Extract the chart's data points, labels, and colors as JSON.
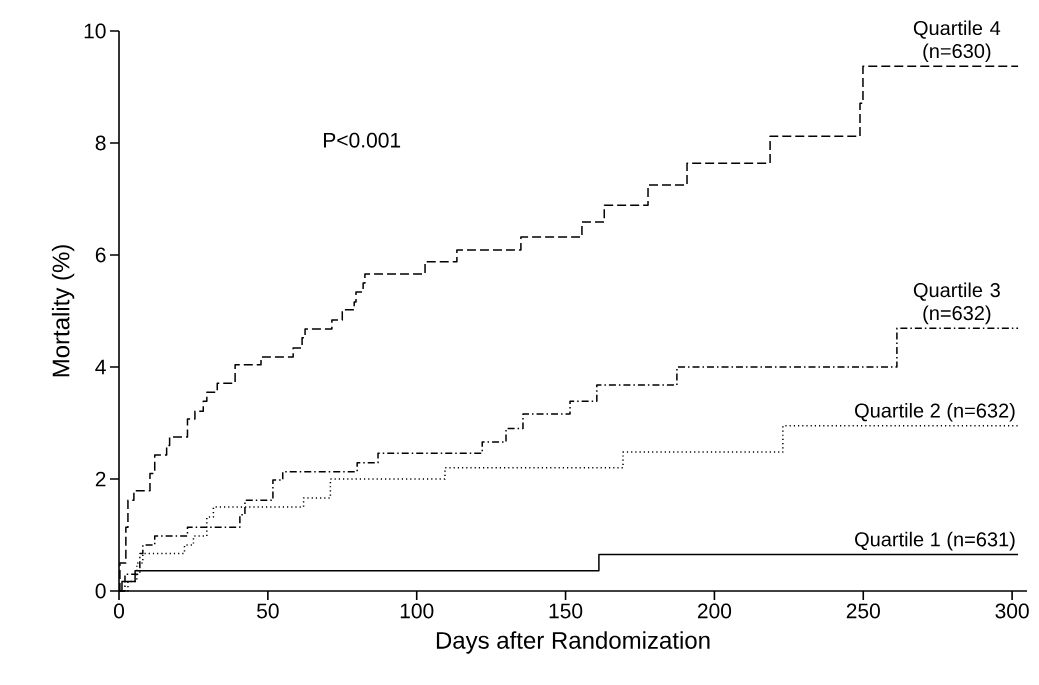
{
  "chart_data": {
    "type": "step",
    "xlabel": "Days after Randomization",
    "ylabel": "Mortality (%)",
    "xlim": [
      0,
      305
    ],
    "ylim": [
      0,
      10
    ],
    "xticks": [
      0,
      50,
      100,
      150,
      200,
      250,
      300
    ],
    "yticks": [
      0,
      2,
      4,
      6,
      8,
      10
    ],
    "annotations": [
      "P<0.001"
    ],
    "legend": false,
    "grid": false,
    "marker": "none",
    "series": [
      {
        "name": "Quartile 4 (n=630)",
        "color": "#000000",
        "line_style": "dashed",
        "x": [
          0,
          0.3,
          2.3,
          3,
          5,
          10.4,
          12,
          16,
          17,
          23,
          25.5,
          28.3,
          29.5,
          33,
          39,
          47.7,
          58.5,
          61.5,
          62.5,
          71.5,
          75,
          79,
          79.6,
          82,
          82.6,
          102.8,
          113.5,
          135,
          155.5,
          163,
          177.7,
          190.8,
          218.7,
          248.9,
          249.9,
          302
        ],
        "values": [
          0,
          0.5,
          1.14,
          1.62,
          1.79,
          2.1,
          2.43,
          2.6,
          2.75,
          3.07,
          3.21,
          3.39,
          3.55,
          3.71,
          4.04,
          4.18,
          4.34,
          4.52,
          4.68,
          4.84,
          5.02,
          5.16,
          5.34,
          5.5,
          5.66,
          5.88,
          6.09,
          6.32,
          6.59,
          6.89,
          7.25,
          7.64,
          8.12,
          8.71,
          9.37,
          9.37
        ]
      },
      {
        "name": "Quartile 3 (n=632)",
        "color": "#000000",
        "line_style": "dashdot",
        "x": [
          0,
          2,
          7,
          8,
          12,
          23,
          40.6,
          42.3,
          51.7,
          55,
          80,
          87,
          122,
          130,
          135.7,
          151.5,
          160.5,
          187.4,
          261.3,
          302
        ],
        "values": [
          0,
          0.3,
          0.67,
          0.82,
          0.98,
          1.14,
          1.36,
          1.62,
          1.98,
          2.13,
          2.29,
          2.46,
          2.66,
          2.9,
          3.16,
          3.39,
          3.68,
          4.0,
          4.69,
          4.69
        ]
      },
      {
        "name": "Quartile 2 (n=632)",
        "color": "#000000",
        "line_style": "dotted",
        "x": [
          0,
          3,
          6,
          8,
          22,
          25,
          29.5,
          31.7,
          62,
          71,
          109.5,
          169.3,
          223,
          302
        ],
        "values": [
          0,
          0.17,
          0.5,
          0.67,
          0.82,
          0.98,
          1.32,
          1.5,
          1.66,
          2.0,
          2.2,
          2.48,
          2.95,
          2.95
        ]
      },
      {
        "name": "Quartile 1 (n=631)",
        "color": "#000000",
        "line_style": "solid",
        "x": [
          0,
          1,
          5.4,
          161.2,
          302
        ],
        "values": [
          0,
          0.17,
          0.36,
          0.65,
          0.65
        ]
      }
    ]
  }
}
